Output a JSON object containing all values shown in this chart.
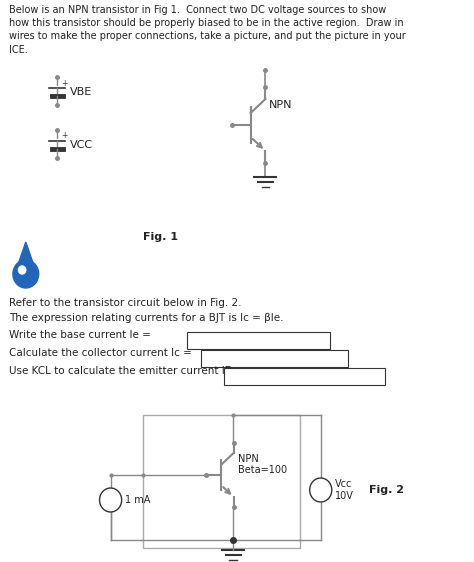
{
  "bg_color": "#ffffff",
  "text_color": "#222222",
  "title_text": "Below is an NPN transistor in Fig 1.  Connect two DC voltage sources to show\nhow this transistor should be properly biased to be in the active region.  Draw in\nwires to make the proper connections, take a picture, and put the picture in your\nICE.",
  "refer_text": "Refer to the transistor circuit below in Fig. 2.",
  "bjt_text": "The expression relating currents for a BJT is Ic = βIe.",
  "q1_text": "Write the base current Ie =",
  "q2_text": "Calculate the collector current Ic =",
  "q3_text": "Use KCL to calculate the emitter current IE =",
  "fig1_label": "Fig. 1",
  "fig2_label": "Fig. 2",
  "vbe_label": "VBE",
  "vcc_label": "VCC",
  "npn_label1": "NPN",
  "npn_label2": "Beta=100",
  "vcc2_label": "Vcc\n10V",
  "ima_label": "1 mA",
  "gray": "#888888",
  "dark": "#333333",
  "drop_color": "#2266bb"
}
